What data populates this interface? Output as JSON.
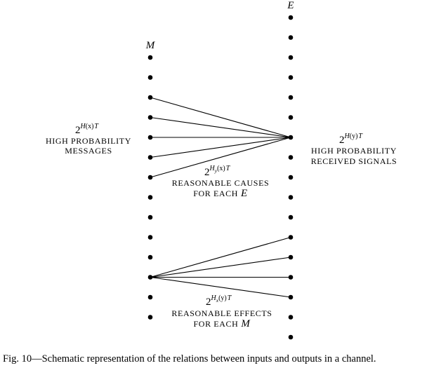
{
  "columns": {
    "M": {
      "label": "M",
      "dot_count": 14
    },
    "E": {
      "label": "E",
      "dot_count": 17
    }
  },
  "groups": {
    "messages": {
      "base": "2",
      "exponent_fn": "H",
      "exponent_arg": "(x)",
      "exponent_tail": "T",
      "line1": "HIGH PROBABILITY",
      "line2": "MESSAGES"
    },
    "received": {
      "base": "2",
      "exponent_fn": "H",
      "exponent_arg": "(y)",
      "exponent_tail": "T",
      "line1": "HIGH PROBABILITY",
      "line2": "RECEIVED SIGNALS"
    },
    "causes": {
      "base": "2",
      "exponent_fn": "H",
      "exponent_sub": "y",
      "exponent_arg": "(x)",
      "exponent_tail": "T",
      "line1": "REASONABLE CAUSES",
      "line2_prefix": "FOR EACH",
      "line2_var": "E"
    },
    "effects": {
      "base": "2",
      "exponent_fn": "H",
      "exponent_sub": "x",
      "exponent_arg": "(y)",
      "exponent_tail": "T",
      "line1": "REASONABLE EFFECTS",
      "line2_prefix": "FOR EACH",
      "line2_var": "M"
    }
  },
  "fan_in": {
    "from_M_dots": [
      3,
      4,
      5,
      6,
      7
    ],
    "to_E_dot": 7
  },
  "fan_out": {
    "from_M_dot": 12,
    "to_E_dots": [
      12,
      13,
      14,
      15
    ]
  },
  "caption": "Fig. 10—Schematic representation of the relations between inputs and outputs in a channel."
}
